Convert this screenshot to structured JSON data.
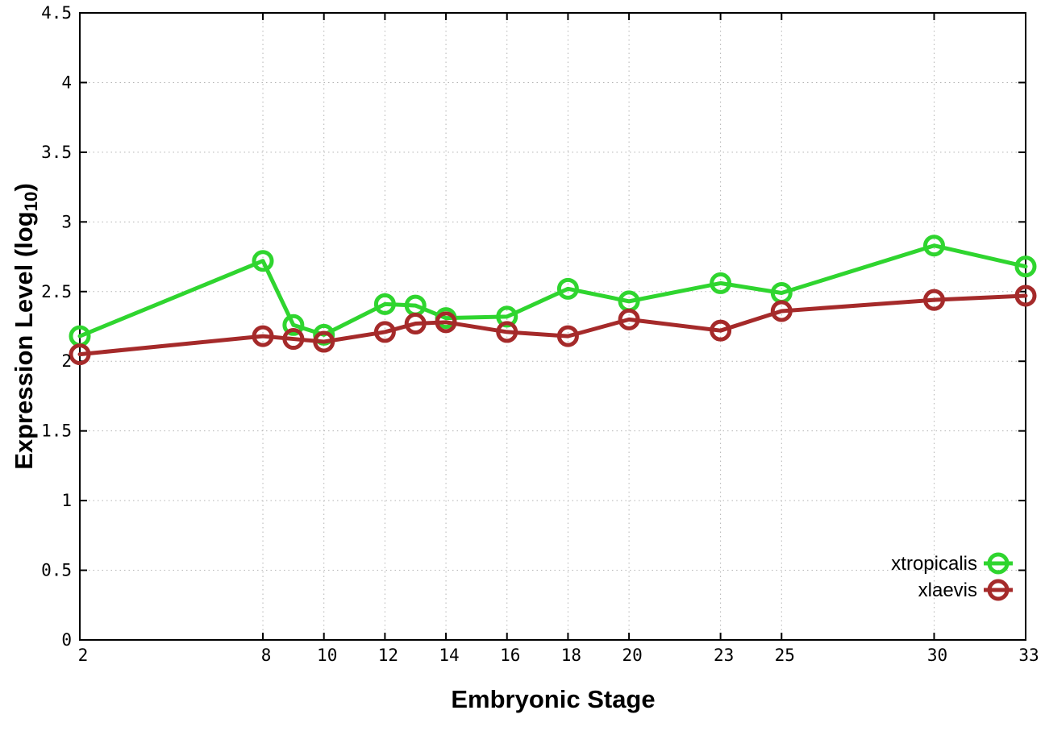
{
  "chart_data": {
    "type": "line",
    "title": "",
    "xlabel": "Embryonic Stage",
    "ylabel": {
      "main": "Expression Level (log",
      "sub": "10",
      "suffix": ")"
    },
    "x": [
      2,
      8,
      9,
      10,
      12,
      13,
      14,
      16,
      18,
      20,
      23,
      25,
      30,
      33
    ],
    "xlim": [
      2,
      33
    ],
    "ylim": [
      0,
      4.5
    ],
    "x_tick_values": [
      2,
      8,
      10,
      12,
      14,
      16,
      18,
      20,
      23,
      25,
      30,
      33
    ],
    "x_tick_labels": [
      "2",
      "8",
      "10",
      "12",
      "14",
      "16",
      "18",
      "20",
      "23",
      "25",
      "30",
      "33"
    ],
    "y_tick_values": [
      0,
      0.5,
      1,
      1.5,
      2,
      2.5,
      3,
      3.5,
      4,
      4.5
    ],
    "y_tick_labels": [
      "0",
      "0.5",
      "1",
      "1.5",
      "2",
      "2.5",
      "3",
      "3.5",
      "4",
      "4.5"
    ],
    "grid": true,
    "legend_position": "bottom-right",
    "marker": "open-circle",
    "series": [
      {
        "name": "xtropicalis",
        "color": "#2fd52f",
        "values": [
          2.18,
          2.72,
          2.26,
          2.19,
          2.41,
          2.4,
          2.31,
          2.32,
          2.52,
          2.43,
          2.56,
          2.49,
          2.83,
          2.68
        ]
      },
      {
        "name": "xlaevis",
        "color": "#a52a2a",
        "values": [
          2.05,
          2.18,
          2.16,
          2.14,
          2.21,
          2.27,
          2.28,
          2.21,
          2.18,
          2.3,
          2.22,
          2.36,
          2.44,
          2.47
        ]
      }
    ]
  },
  "colors": {
    "background": "#ffffff",
    "grid": "#b3b3b3",
    "border": "#000000",
    "text": "#000000"
  }
}
